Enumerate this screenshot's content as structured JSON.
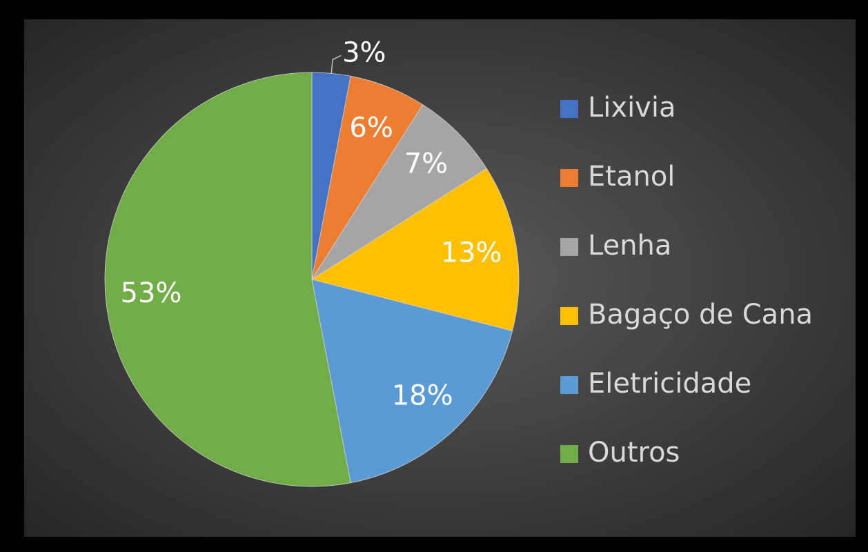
{
  "chart_data": {
    "type": "pie",
    "categories": [
      "Lixivia",
      "Etanol",
      "Lenha",
      "Bagaço de Cana",
      "Eletricidade",
      "Outros"
    ],
    "values": [
      3,
      6,
      7,
      13,
      18,
      53
    ],
    "value_labels": [
      "3%",
      "6%",
      "7%",
      "13%",
      "18%",
      "53%"
    ],
    "colors": [
      "#4472c4",
      "#ed7d31",
      "#a5a5a5",
      "#ffc000",
      "#5b9bd5",
      "#70ad47"
    ],
    "legend": "right"
  }
}
